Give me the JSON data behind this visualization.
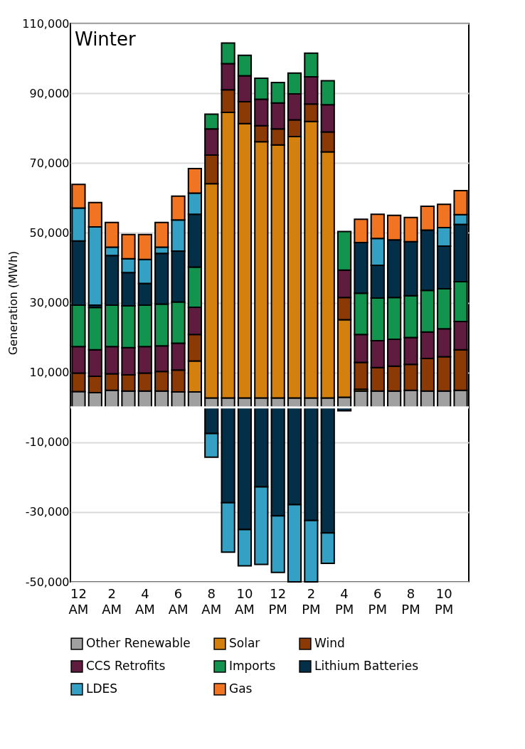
{
  "chart_data": {
    "type": "bar",
    "title": "Winter",
    "ylabel": "Generation (MWh)",
    "stacked": true,
    "categories": [
      "12 AM",
      null,
      "2 AM",
      null,
      "4 AM",
      null,
      "6 AM",
      null,
      "8 AM",
      null,
      "10 AM",
      null,
      "12 PM",
      null,
      "2 PM",
      null,
      "4 PM",
      null,
      "6 PM",
      null,
      "8 PM",
      null,
      "10 PM",
      null
    ],
    "ylim": [
      -50000,
      110000
    ],
    "yticks": [
      {
        "value": -50000,
        "label": "-50,000"
      },
      {
        "value": -30000,
        "label": "-30,000"
      },
      {
        "value": -10000,
        "label": "-10,000"
      },
      {
        "value": 10000,
        "label": "10,000"
      },
      {
        "value": 30000,
        "label": "30,000"
      },
      {
        "value": 50000,
        "label": "50,000"
      },
      {
        "value": 70000,
        "label": "70,000"
      },
      {
        "value": 90000,
        "label": "90,000"
      },
      {
        "value": 110000,
        "label": "110,000"
      }
    ],
    "grid": "y",
    "legend": "bottom",
    "series": [
      {
        "name": "Other Renewable",
        "color": "#a0a0a0",
        "values": [
          4500,
          4200,
          4900,
          4700,
          4700,
          4700,
          4400,
          4400,
          2700,
          2700,
          2700,
          2700,
          2700,
          2700,
          2700,
          2700,
          2900,
          4700,
          4700,
          4700,
          4900,
          4700,
          4700,
          4900
        ]
      },
      {
        "name": "Solar",
        "color": "#d4800f",
        "values": [
          null,
          null,
          null,
          null,
          null,
          null,
          null,
          8900,
          61400,
          81800,
          78600,
          73400,
          72500,
          74900,
          79200,
          70500,
          22200,
          500,
          null,
          null,
          null,
          null,
          null,
          null
        ]
      },
      {
        "name": "Wind",
        "color": "#8b3a05",
        "values": [
          5300,
          4700,
          4700,
          4600,
          5100,
          5600,
          6300,
          7600,
          8200,
          6500,
          6300,
          4600,
          4600,
          4800,
          5000,
          5700,
          6400,
          7700,
          6700,
          7100,
          7400,
          9300,
          9800,
          11600
        ]
      },
      {
        "name": "CCS Retrofits",
        "color": "#5f1c3f",
        "values": [
          7600,
          7600,
          7800,
          7800,
          7600,
          7300,
          7700,
          7800,
          7500,
          7500,
          7400,
          7600,
          7400,
          7400,
          7800,
          7800,
          7800,
          8000,
          7700,
          7700,
          7700,
          7600,
          8000,
          8100
        ]
      },
      {
        "name": "Imports",
        "color": "#13944e",
        "values": [
          11900,
          12100,
          11900,
          12000,
          11900,
          12000,
          11800,
          11500,
          4200,
          5900,
          5900,
          6000,
          5900,
          6000,
          6800,
          6900,
          11100,
          11800,
          12200,
          12000,
          12000,
          11900,
          11500,
          11400
        ]
      },
      {
        "name": "Lithium Batteries",
        "color": "#042f48",
        "values": [
          18400,
          700,
          14200,
          9500,
          6200,
          14500,
          14600,
          15100,
          -7500,
          -27300,
          -35000,
          -22800,
          -31100,
          -27900,
          -32400,
          -36000,
          -1000,
          14500,
          9400,
          16500,
          15500,
          17300,
          12200,
          16400
        ]
      },
      {
        "name": "LDES",
        "color": "#34a0c4",
        "values": [
          9400,
          22400,
          2400,
          4000,
          6900,
          1800,
          8900,
          6100,
          -6800,
          -14200,
          -10400,
          -22200,
          -16200,
          -22100,
          -17600,
          -8700,
          null,
          null,
          7700,
          null,
          null,
          null,
          5300,
          2800
        ]
      },
      {
        "name": "Gas",
        "color": "#f17423",
        "values": [
          6800,
          7000,
          7100,
          6900,
          7100,
          7100,
          6800,
          7000,
          null,
          null,
          null,
          null,
          null,
          null,
          null,
          null,
          null,
          6700,
          6900,
          7000,
          6900,
          6800,
          6700,
          6900
        ]
      }
    ]
  }
}
